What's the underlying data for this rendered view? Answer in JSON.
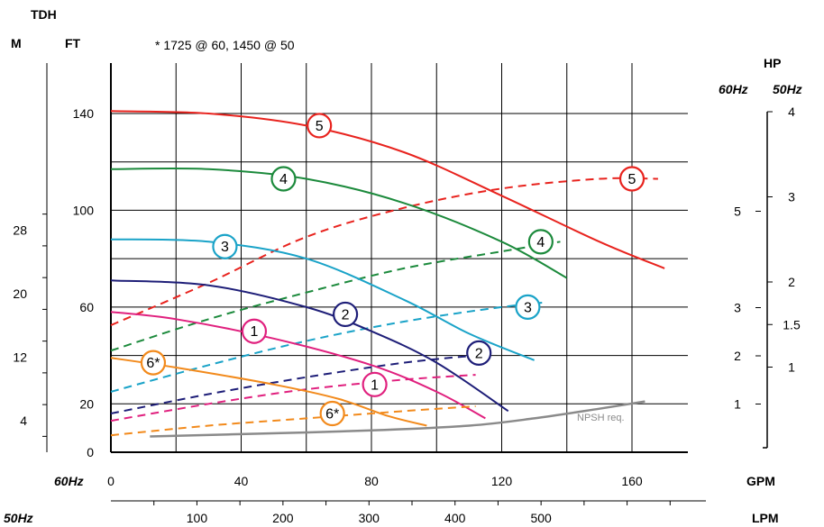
{
  "chart_data": {
    "type": "line",
    "header": {
      "tdh": "TDH",
      "m": "M",
      "ft": "FT",
      "note": "* 1725 @ 60, 1450 @ 50"
    },
    "hp_header": {
      "hp": "HP",
      "hz60": "60Hz",
      "hz50": "50Hz"
    },
    "x_gpm": {
      "label": "GPM",
      "freq": "60Hz",
      "min": 0,
      "max": 176,
      "ticks": [
        "0",
        "40",
        "80",
        "120",
        "160"
      ],
      "tick_values": [
        0,
        40,
        80,
        120,
        160
      ]
    },
    "x_lpm": {
      "label": "LPM",
      "freq": "50Hz",
      "ticks": [
        "100",
        "200",
        "300",
        "400",
        "500"
      ],
      "tick_values": [
        100,
        200,
        300,
        400,
        500
      ]
    },
    "y_ft": {
      "min": 0,
      "max": 160,
      "ticks": [
        "0",
        "20",
        "60",
        "100",
        "140"
      ],
      "tick_values": [
        0,
        20,
        60,
        100,
        140
      ]
    },
    "y_m": {
      "ticks": [
        "4",
        "12",
        "20",
        "28"
      ],
      "tick_values": [
        4,
        12,
        20,
        28
      ]
    },
    "hp_60hz": {
      "ticks": [
        "1",
        "2",
        "3",
        "5"
      ],
      "tick_values": [
        1,
        2,
        3,
        5
      ]
    },
    "hp_50hz": {
      "ticks": [
        "1",
        "1.5",
        "2",
        "3",
        "4"
      ],
      "tick_values": [
        1,
        1.5,
        2,
        3,
        4
      ]
    },
    "series": [
      {
        "name": "5",
        "color": "#e8231e",
        "head": [
          [
            0,
            141
          ],
          [
            30,
            140
          ],
          [
            60,
            135
          ],
          [
            90,
            124
          ],
          [
            120,
            106
          ],
          [
            150,
            87
          ],
          [
            170,
            76
          ]
        ],
        "hp": [
          [
            0,
            52.5
          ],
          [
            30,
            70
          ],
          [
            60,
            89
          ],
          [
            90,
            101
          ],
          [
            120,
            109
          ],
          [
            150,
            113
          ],
          [
            168,
            113
          ]
        ],
        "head_label_at": [
          64,
          135
        ],
        "hp_label_at": [
          160,
          113
        ]
      },
      {
        "name": "4",
        "color": "#1c8a3c",
        "head": [
          [
            0,
            117
          ],
          [
            30,
            117
          ],
          [
            60,
            113
          ],
          [
            90,
            103
          ],
          [
            120,
            87
          ],
          [
            140,
            72
          ]
        ],
        "hp": [
          [
            0,
            42
          ],
          [
            30,
            55
          ],
          [
            60,
            66
          ],
          [
            90,
            76
          ],
          [
            120,
            83
          ],
          [
            138,
            87
          ]
        ],
        "head_label_at": [
          53,
          113
        ],
        "hp_label_at": [
          132,
          87
        ]
      },
      {
        "name": "3",
        "color": "#1aa3c8",
        "head": [
          [
            0,
            88
          ],
          [
            30,
            87
          ],
          [
            60,
            80
          ],
          [
            90,
            63
          ],
          [
            110,
            49
          ],
          [
            130,
            38
          ]
        ],
        "hp": [
          [
            0,
            25
          ],
          [
            30,
            36
          ],
          [
            60,
            46
          ],
          [
            90,
            54
          ],
          [
            120,
            60
          ],
          [
            134,
            62
          ]
        ],
        "head_label_at": [
          35,
          85
        ],
        "hp_label_at": [
          128,
          60
        ]
      },
      {
        "name": "2",
        "color": "#1e1e78",
        "head": [
          [
            0,
            71
          ],
          [
            30,
            69
          ],
          [
            60,
            60
          ],
          [
            80,
            50
          ],
          [
            100,
            37
          ],
          [
            122,
            17
          ]
        ],
        "hp": [
          [
            0,
            16
          ],
          [
            30,
            24
          ],
          [
            60,
            31
          ],
          [
            90,
            37
          ],
          [
            112,
            40
          ]
        ],
        "head_label_at": [
          72,
          57
        ],
        "hp_label_at": [
          113,
          41
        ]
      },
      {
        "name": "1",
        "color": "#e0207e",
        "head": [
          [
            0,
            58
          ],
          [
            20,
            55
          ],
          [
            50,
            47
          ],
          [
            80,
            36
          ],
          [
            100,
            25
          ],
          [
            115,
            14
          ]
        ],
        "hp": [
          [
            0,
            13
          ],
          [
            30,
            20
          ],
          [
            60,
            26
          ],
          [
            90,
            30
          ],
          [
            112,
            32
          ]
        ],
        "head_label_at": [
          44,
          50
        ],
        "hp_label_at": [
          81,
          28
        ]
      },
      {
        "name": "6*",
        "color": "#f28a1c",
        "head": [
          [
            0,
            39
          ],
          [
            20,
            35
          ],
          [
            50,
            28
          ],
          [
            70,
            22
          ],
          [
            85,
            15
          ],
          [
            97,
            11
          ]
        ],
        "hp": [
          [
            0,
            7
          ],
          [
            30,
            11
          ],
          [
            60,
            14
          ],
          [
            90,
            17
          ],
          [
            112,
            19
          ]
        ],
        "head_label_at": [
          13,
          37
        ],
        "hp_label_at": [
          68,
          16
        ]
      }
    ],
    "npsh": {
      "label": "NPSH req.",
      "color": "#8a8a8a",
      "points": [
        [
          12,
          6.5
        ],
        [
          40,
          7.5
        ],
        [
          80,
          9
        ],
        [
          110,
          11
        ],
        [
          130,
          14
        ],
        [
          150,
          18
        ],
        [
          164,
          21
        ]
      ]
    }
  }
}
